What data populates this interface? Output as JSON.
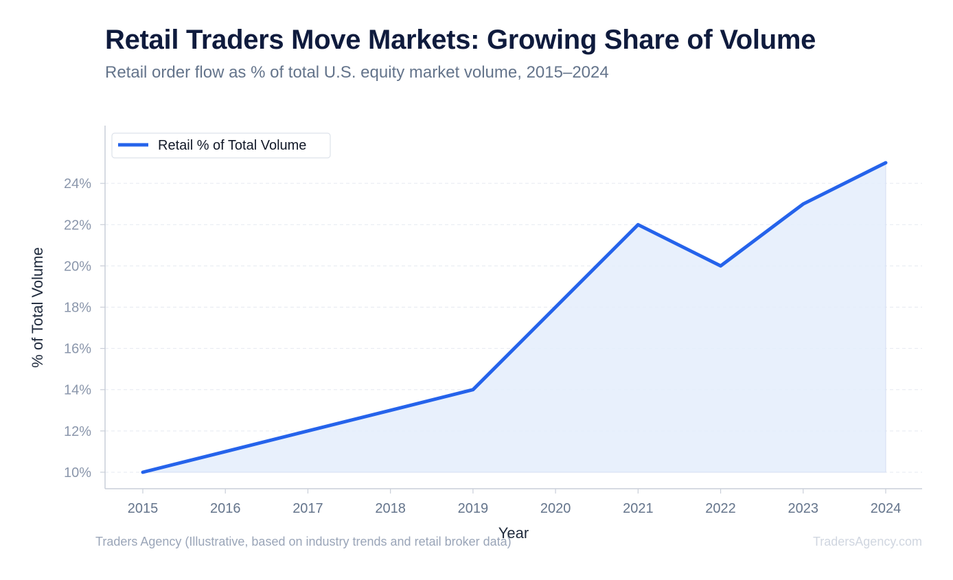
{
  "header": {
    "title": "Retail Traders Move Markets: Growing Share of Volume",
    "subtitle": "Retail order flow as % of total U.S. equity market volume, 2015–2024"
  },
  "footer": {
    "source": "Traders Agency (Illustrative, based on industry trends and retail broker data)",
    "brand": "TradersAgency.com"
  },
  "colors": {
    "line": "#2563eb",
    "area": "#e4edfb",
    "grid": "#e5e9f0",
    "axis": "#c9ced8",
    "tick_text": "#8a96ab",
    "title": "#0f1b3d"
  },
  "chart_data": {
    "type": "area",
    "x": [
      2015,
      2016,
      2017,
      2018,
      2019,
      2020,
      2021,
      2022,
      2023,
      2024
    ],
    "series": [
      {
        "name": "Retail % of Total Volume",
        "values": [
          10,
          11,
          12,
          13,
          14,
          18,
          22,
          20,
          23,
          25
        ]
      }
    ],
    "xlabel": "Year",
    "ylabel": "% of Total Volume",
    "yticks": [
      10,
      12,
      14,
      16,
      18,
      20,
      22,
      24
    ],
    "ytick_labels": [
      "10%",
      "12%",
      "14%",
      "16%",
      "18%",
      "20%",
      "22%",
      "24%"
    ],
    "xtick_labels": [
      "2015",
      "2016",
      "2017",
      "2018",
      "2019",
      "2020",
      "2021",
      "2022",
      "2023",
      "2024"
    ],
    "ylim": [
      9.2,
      26.8
    ],
    "grid": true,
    "legend_position": "top-left"
  }
}
